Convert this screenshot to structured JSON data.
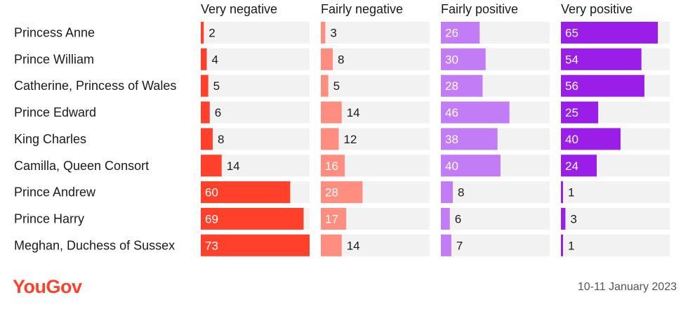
{
  "chart_data": {
    "type": "bar",
    "layout": "small-multiples-horizontal",
    "categories": [
      "Princess Anne",
      "Prince William",
      "Catherine, Princess of Wales",
      "Prince Edward",
      "King Charles",
      "Camilla, Queen Consort",
      "Prince Andrew",
      "Prince Harry",
      "Meghan, Duchess of Sussex"
    ],
    "series": [
      {
        "name": "Very negative",
        "color": "#ff412c",
        "values": [
          2,
          4,
          5,
          6,
          8,
          14,
          60,
          69,
          73
        ]
      },
      {
        "name": "Fairly negative",
        "color": "#ff8d80",
        "values": [
          3,
          8,
          5,
          14,
          12,
          16,
          28,
          17,
          14
        ]
      },
      {
        "name": "Fairly positive",
        "color": "#c27cf5",
        "values": [
          26,
          30,
          28,
          46,
          38,
          40,
          8,
          6,
          7
        ]
      },
      {
        "name": "Very positive",
        "color": "#9b1de8",
        "values": [
          65,
          54,
          56,
          25,
          40,
          24,
          1,
          3,
          1
        ]
      }
    ],
    "xlim": [
      0,
      73
    ],
    "track_color": "#f2f2f2",
    "grid": false
  },
  "footer": {
    "brand": "YouGov",
    "date": "10-11 January 2023"
  }
}
